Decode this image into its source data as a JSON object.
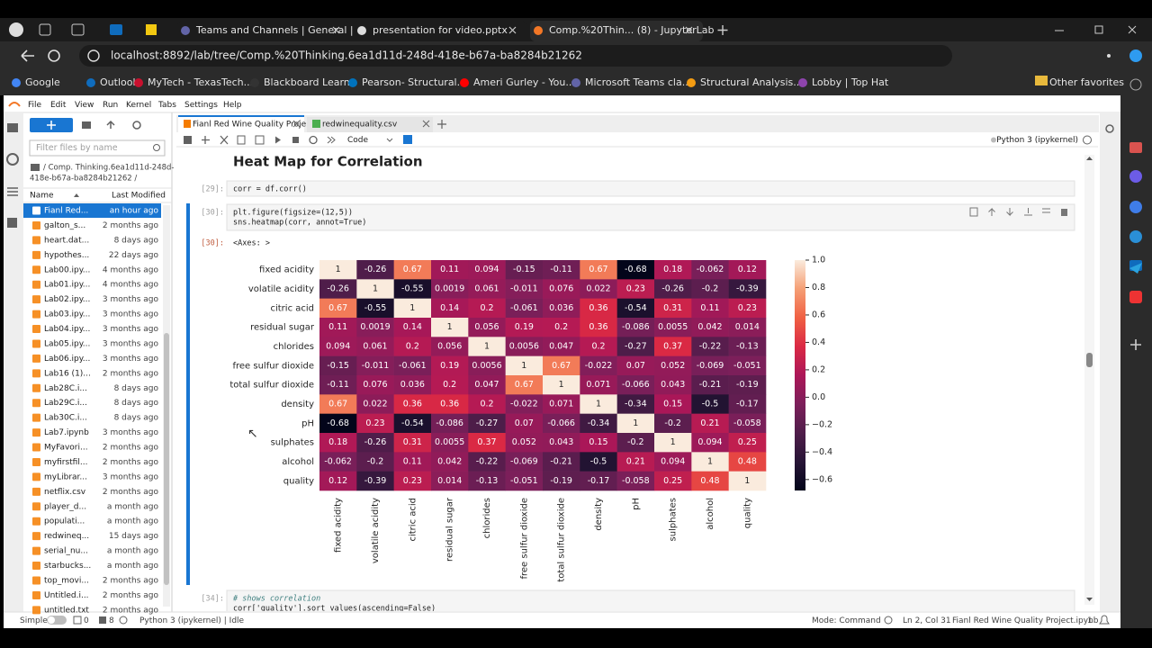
{
  "browser": {
    "tabs": [
      "Teams and Channels | General | M",
      "presentation for video.pptx",
      "Comp.%20Thin... (8) - JupyterLab"
    ],
    "url": "localhost:8892/lab/tree/Comp.%20Thinking.6ea1d11d-248d-418e-b67a-ba8284b21262",
    "bookmarks": [
      "Google",
      "Outlook",
      "MyTech - TexasTech...",
      "Blackboard Learn",
      "Pearson- Structural...",
      "Ameri Gurley - You...",
      "Microsoft Teams cla...",
      "Structural Analysis...",
      "Lobby | Top Hat"
    ],
    "other_favorites": "Other favorites"
  },
  "jupyter": {
    "menu": [
      "File",
      "Edit",
      "View",
      "Run",
      "Kernel",
      "Tabs",
      "Settings",
      "Help"
    ],
    "filter_placeholder": "Filter files by name",
    "breadcrumb": [
      "/ Comp. Thinking.6ea1d11d-248d-",
      "418e-b67a-ba8284b21262 /"
    ],
    "columns": [
      "Name",
      "Last Modified"
    ],
    "files": [
      {
        "name": "Fianl Red...",
        "modified": "an hour ago"
      },
      {
        "name": "galton_s...",
        "modified": "2 months ago"
      },
      {
        "name": "heart.dat...",
        "modified": "8 days ago"
      },
      {
        "name": "hypothes...",
        "modified": "22 days ago"
      },
      {
        "name": "Lab00.ipy...",
        "modified": "4 months ago"
      },
      {
        "name": "Lab01.ipy...",
        "modified": "4 months ago"
      },
      {
        "name": "Lab02.ipy...",
        "modified": "3 months ago"
      },
      {
        "name": "Lab03.ipy...",
        "modified": "3 months ago"
      },
      {
        "name": "Lab04.ipy...",
        "modified": "3 months ago"
      },
      {
        "name": "Lab05.ipy...",
        "modified": "3 months ago"
      },
      {
        "name": "Lab06.ipy...",
        "modified": "3 months ago"
      },
      {
        "name": "Lab16 (1)...",
        "modified": "2 months ago"
      },
      {
        "name": "Lab28C.i...",
        "modified": "8 days ago"
      },
      {
        "name": "Lab29C.i...",
        "modified": "8 days ago"
      },
      {
        "name": "Lab30C.i...",
        "modified": "8 days ago"
      },
      {
        "name": "Lab7.ipynb",
        "modified": "3 months ago"
      },
      {
        "name": "MyFavori...",
        "modified": "2 months ago"
      },
      {
        "name": "myfirstfil...",
        "modified": "2 months ago"
      },
      {
        "name": "myLibrar...",
        "modified": "3 months ago"
      },
      {
        "name": "netflix.csv",
        "modified": "2 months ago"
      },
      {
        "name": "player_d...",
        "modified": "a month ago"
      },
      {
        "name": "populati...",
        "modified": "a month ago"
      },
      {
        "name": "redwineq...",
        "modified": "15 days ago"
      },
      {
        "name": "serial_nu...",
        "modified": "a month ago"
      },
      {
        "name": "starbucks...",
        "modified": "a month ago"
      },
      {
        "name": "top_movi...",
        "modified": "2 months ago"
      },
      {
        "name": "Untitled.i...",
        "modified": "2 months ago"
      },
      {
        "name": "untitled.txt",
        "modified": "2 months ago"
      }
    ],
    "doc_tabs": [
      "Fianl Red Wine Quality Proje",
      "redwinequality.csv"
    ],
    "cell_type": "Code",
    "kernel": "Python 3 (ipykernel)",
    "heading": "Heat Map for Correlation",
    "cells": [
      {
        "prompt": "[29]:",
        "code": [
          "corr = df.corr()"
        ]
      },
      {
        "prompt": "[30]:",
        "code": [
          "plt.figure(figsize=(12,5))",
          "sns.heatmap(corr, annot=True)"
        ],
        "output_prompt": "[30]:",
        "output": "<Axes: >"
      },
      {
        "prompt": "[34]:",
        "code": [
          "# shows correlation",
          "corr['quality'].sort_values(ascending=False)"
        ]
      }
    ]
  },
  "status_bar": {
    "mode_toggle": "Simple",
    "terminals": "0",
    "kernels": "8",
    "kernel_status": "Python 3 (ipykernel) | Idle",
    "mode": "Mode: Command",
    "cursor": "Ln 2, Col 31",
    "file": "Fianl Red Wine Quality Project.ipynb",
    "notifications": "1"
  },
  "chart_data": {
    "type": "heatmap",
    "x_labels": [
      "fixed acidity",
      "volatile acidity",
      "citric acid",
      "residual sugar",
      "chlorides",
      "free sulfur dioxide",
      "total sulfur dioxide",
      "density",
      "pH",
      "sulphates",
      "alcohol",
      "quality"
    ],
    "y_labels": [
      "fixed acidity",
      "volatile acidity",
      "citric acid",
      "residual sugar",
      "chlorides",
      "free sulfur dioxide",
      "total sulfur dioxide",
      "density",
      "pH",
      "sulphates",
      "alcohol",
      "quality"
    ],
    "values": [
      [
        1,
        -0.26,
        0.67,
        0.11,
        0.094,
        -0.15,
        -0.11,
        0.67,
        -0.68,
        0.18,
        -0.062,
        0.12
      ],
      [
        -0.26,
        1,
        -0.55,
        0.0019,
        0.061,
        -0.011,
        0.076,
        0.022,
        0.23,
        -0.26,
        -0.2,
        -0.39
      ],
      [
        0.67,
        -0.55,
        1,
        0.14,
        0.2,
        -0.061,
        0.036,
        0.36,
        -0.54,
        0.31,
        0.11,
        0.23
      ],
      [
        0.11,
        0.0019,
        0.14,
        1,
        0.056,
        0.19,
        0.2,
        0.36,
        -0.086,
        0.0055,
        0.042,
        0.014
      ],
      [
        0.094,
        0.061,
        0.2,
        0.056,
        1,
        0.0056,
        0.047,
        0.2,
        -0.27,
        0.37,
        -0.22,
        -0.13
      ],
      [
        -0.15,
        -0.011,
        -0.061,
        0.19,
        0.0056,
        1,
        0.67,
        -0.022,
        0.07,
        0.052,
        -0.069,
        -0.051
      ],
      [
        -0.11,
        0.076,
        0.036,
        0.2,
        0.047,
        0.67,
        1,
        0.071,
        -0.066,
        0.043,
        -0.21,
        -0.19
      ],
      [
        0.67,
        0.022,
        0.36,
        0.36,
        0.2,
        -0.022,
        0.071,
        1,
        -0.34,
        0.15,
        -0.5,
        -0.17
      ],
      [
        -0.68,
        0.23,
        -0.54,
        -0.086,
        -0.27,
        0.07,
        -0.066,
        -0.34,
        1,
        -0.2,
        0.21,
        -0.058
      ],
      [
        0.18,
        -0.26,
        0.31,
        0.0055,
        0.37,
        0.052,
        0.043,
        0.15,
        -0.2,
        1,
        0.094,
        0.25
      ],
      [
        -0.062,
        -0.2,
        0.11,
        0.042,
        -0.22,
        -0.069,
        -0.21,
        -0.5,
        0.21,
        0.094,
        1,
        0.48
      ],
      [
        0.12,
        -0.39,
        0.23,
        0.014,
        -0.13,
        -0.051,
        -0.19,
        -0.17,
        -0.058,
        0.25,
        0.48,
        1
      ]
    ],
    "colormap": "rocket",
    "clim": [
      -0.68,
      1
    ],
    "colorbar_ticks": [
      {
        "value": 1,
        "label": "1.0"
      },
      0.8,
      0.6,
      0.4,
      0.2,
      {
        "value": 0,
        "label": "0.0"
      },
      {
        "value": -0.2,
        "label": "−0.2"
      },
      {
        "value": -0.4,
        "label": "−0.4"
      },
      {
        "value": -0.6,
        "label": "−0.6"
      }
    ]
  }
}
